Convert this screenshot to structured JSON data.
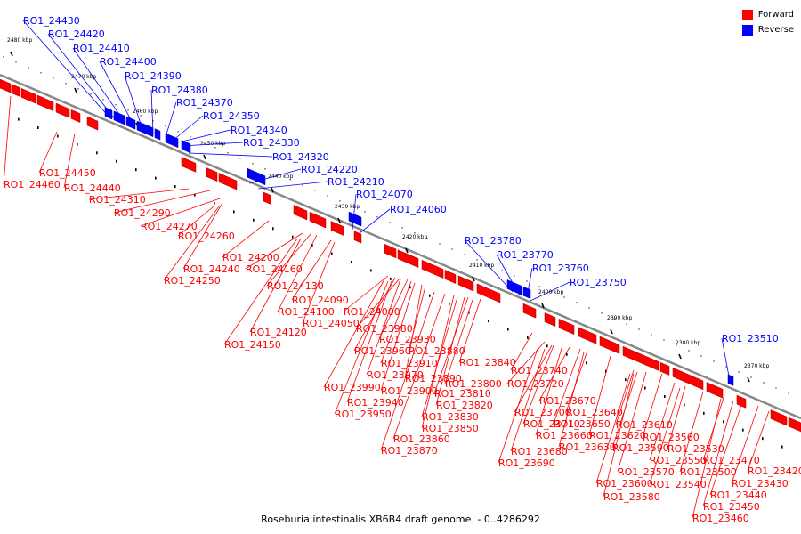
{
  "legend": {
    "forward": {
      "label": "Forward",
      "color": "#ff0000"
    },
    "reverse": {
      "label": "Reverse",
      "color": "#0000ff"
    }
  },
  "caption": "Roseburia intestinalis XB6B4 draft genome. - 0..4286292",
  "backbone_color": "#888888",
  "scale": [
    "2480 kbp",
    "2470 kbp",
    "2460 kbp",
    "2450 kbp",
    "2440 kbp",
    "2430 kbp",
    "2420 kbp",
    "2410 kbp",
    "2400 kbp",
    "2390 kbp",
    "2380 kbp",
    "2370 kbp"
  ],
  "reverse_genes": [
    "RO1_24430",
    "RO1_24420",
    "RO1_24410",
    "RO1_24400",
    "RO1_24390",
    "RO1_24380",
    "RO1_24370",
    "RO1_24350",
    "RO1_24340",
    "RO1_24330",
    "RO1_24320",
    "RO1_24220",
    "RO1_24210",
    "RO1_24070",
    "RO1_24060",
    "RO1_23780",
    "RO1_23770",
    "RO1_23760",
    "RO1_23750",
    "RO1_23510"
  ],
  "forward_genes": [
    "RO1_24450",
    "RO1_24460",
    "RO1_24440",
    "RO1_24310",
    "RO1_24290",
    "RO1_24270",
    "RO1_24260",
    "RO1_24200",
    "RO1_24160",
    "RO1_24240",
    "RO1_24250",
    "RO1_24130",
    "RO1_24090",
    "RO1_24100",
    "RO1_24050",
    "RO1_24000",
    "RO1_24120",
    "RO1_24150",
    "RO1_23980",
    "RO1_23930",
    "RO1_23960",
    "RO1_23910",
    "RO1_23880",
    "RO1_23840",
    "RO1_23970",
    "RO1_23890",
    "RO1_23800",
    "RO1_23990",
    "RO1_23900",
    "RO1_23810",
    "RO1_23940",
    "RO1_23820",
    "RO1_23950",
    "RO1_23830",
    "RO1_23850",
    "RO1_23860",
    "RO1_23870",
    "RO1_23740",
    "RO1_23720",
    "RO1_23670",
    "RO1_23700",
    "RO1_23640",
    "RO1_23710",
    "RO1_23650",
    "RO1_23660",
    "RO1_23620",
    "RO1_23610",
    "RO1_23680",
    "RO1_23630",
    "RO1_23590",
    "RO1_23560",
    "RO1_23690",
    "RO1_23550",
    "RO1_23530",
    "RO1_23570",
    "RO1_23500",
    "RO1_23470",
    "RO1_23600",
    "RO1_23540",
    "RO1_23420",
    "RO1_23580",
    "RO1_23430",
    "RO1_23440",
    "RO1_23450",
    "RO1_23460"
  ]
}
